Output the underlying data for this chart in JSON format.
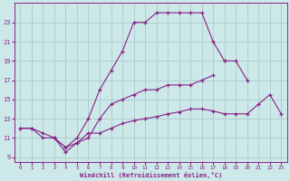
{
  "xlabel": "Windchill (Refroidissement éolien,°C)",
  "bg_color": "#cce8e8",
  "line_color": "#882288",
  "grid_color": "#aacccc",
  "xlim": [
    -0.5,
    23.5
  ],
  "ylim": [
    8.5,
    25.0
  ],
  "yticks": [
    9,
    11,
    13,
    15,
    17,
    19,
    21,
    23
  ],
  "xticks": [
    0,
    1,
    2,
    3,
    4,
    5,
    6,
    7,
    8,
    9,
    10,
    11,
    12,
    13,
    14,
    15,
    16,
    17,
    18,
    19,
    20,
    21,
    22,
    23
  ],
  "curve1_x": [
    0,
    1,
    2,
    3,
    4,
    5,
    6,
    7,
    8,
    9,
    10,
    11,
    12,
    13,
    14,
    15,
    16,
    17,
    18
  ],
  "curve1_y": [
    12,
    12,
    11,
    11,
    10,
    11,
    13,
    16,
    18,
    20,
    23,
    23,
    24,
    24,
    24,
    24,
    24,
    21,
    19
  ],
  "curve2_x": [
    18,
    19,
    20
  ],
  "curve2_y": [
    19,
    19,
    17
  ],
  "curve3_x": [
    3,
    4,
    5,
    6,
    7,
    8,
    9,
    10,
    11,
    12,
    13,
    14,
    15,
    16,
    17
  ],
  "curve3_y": [
    11,
    9.5,
    10.5,
    11,
    13,
    14.5,
    15,
    15.5,
    16,
    16,
    16.5,
    16.5,
    16.5,
    17,
    17.5
  ],
  "curve4_x": [
    0,
    1,
    2,
    3,
    4,
    5,
    6,
    7,
    8,
    9,
    10,
    11,
    12,
    13,
    14,
    15,
    16,
    17,
    18,
    19,
    20,
    21,
    22,
    23
  ],
  "curve4_y": [
    12,
    12,
    11.5,
    11,
    10,
    10.5,
    11.5,
    11.5,
    12,
    12.5,
    12.8,
    13,
    13.2,
    13.5,
    13.7,
    14,
    14,
    13.8,
    13.5,
    13.5,
    13.5,
    14.5,
    15.5,
    13.5
  ]
}
